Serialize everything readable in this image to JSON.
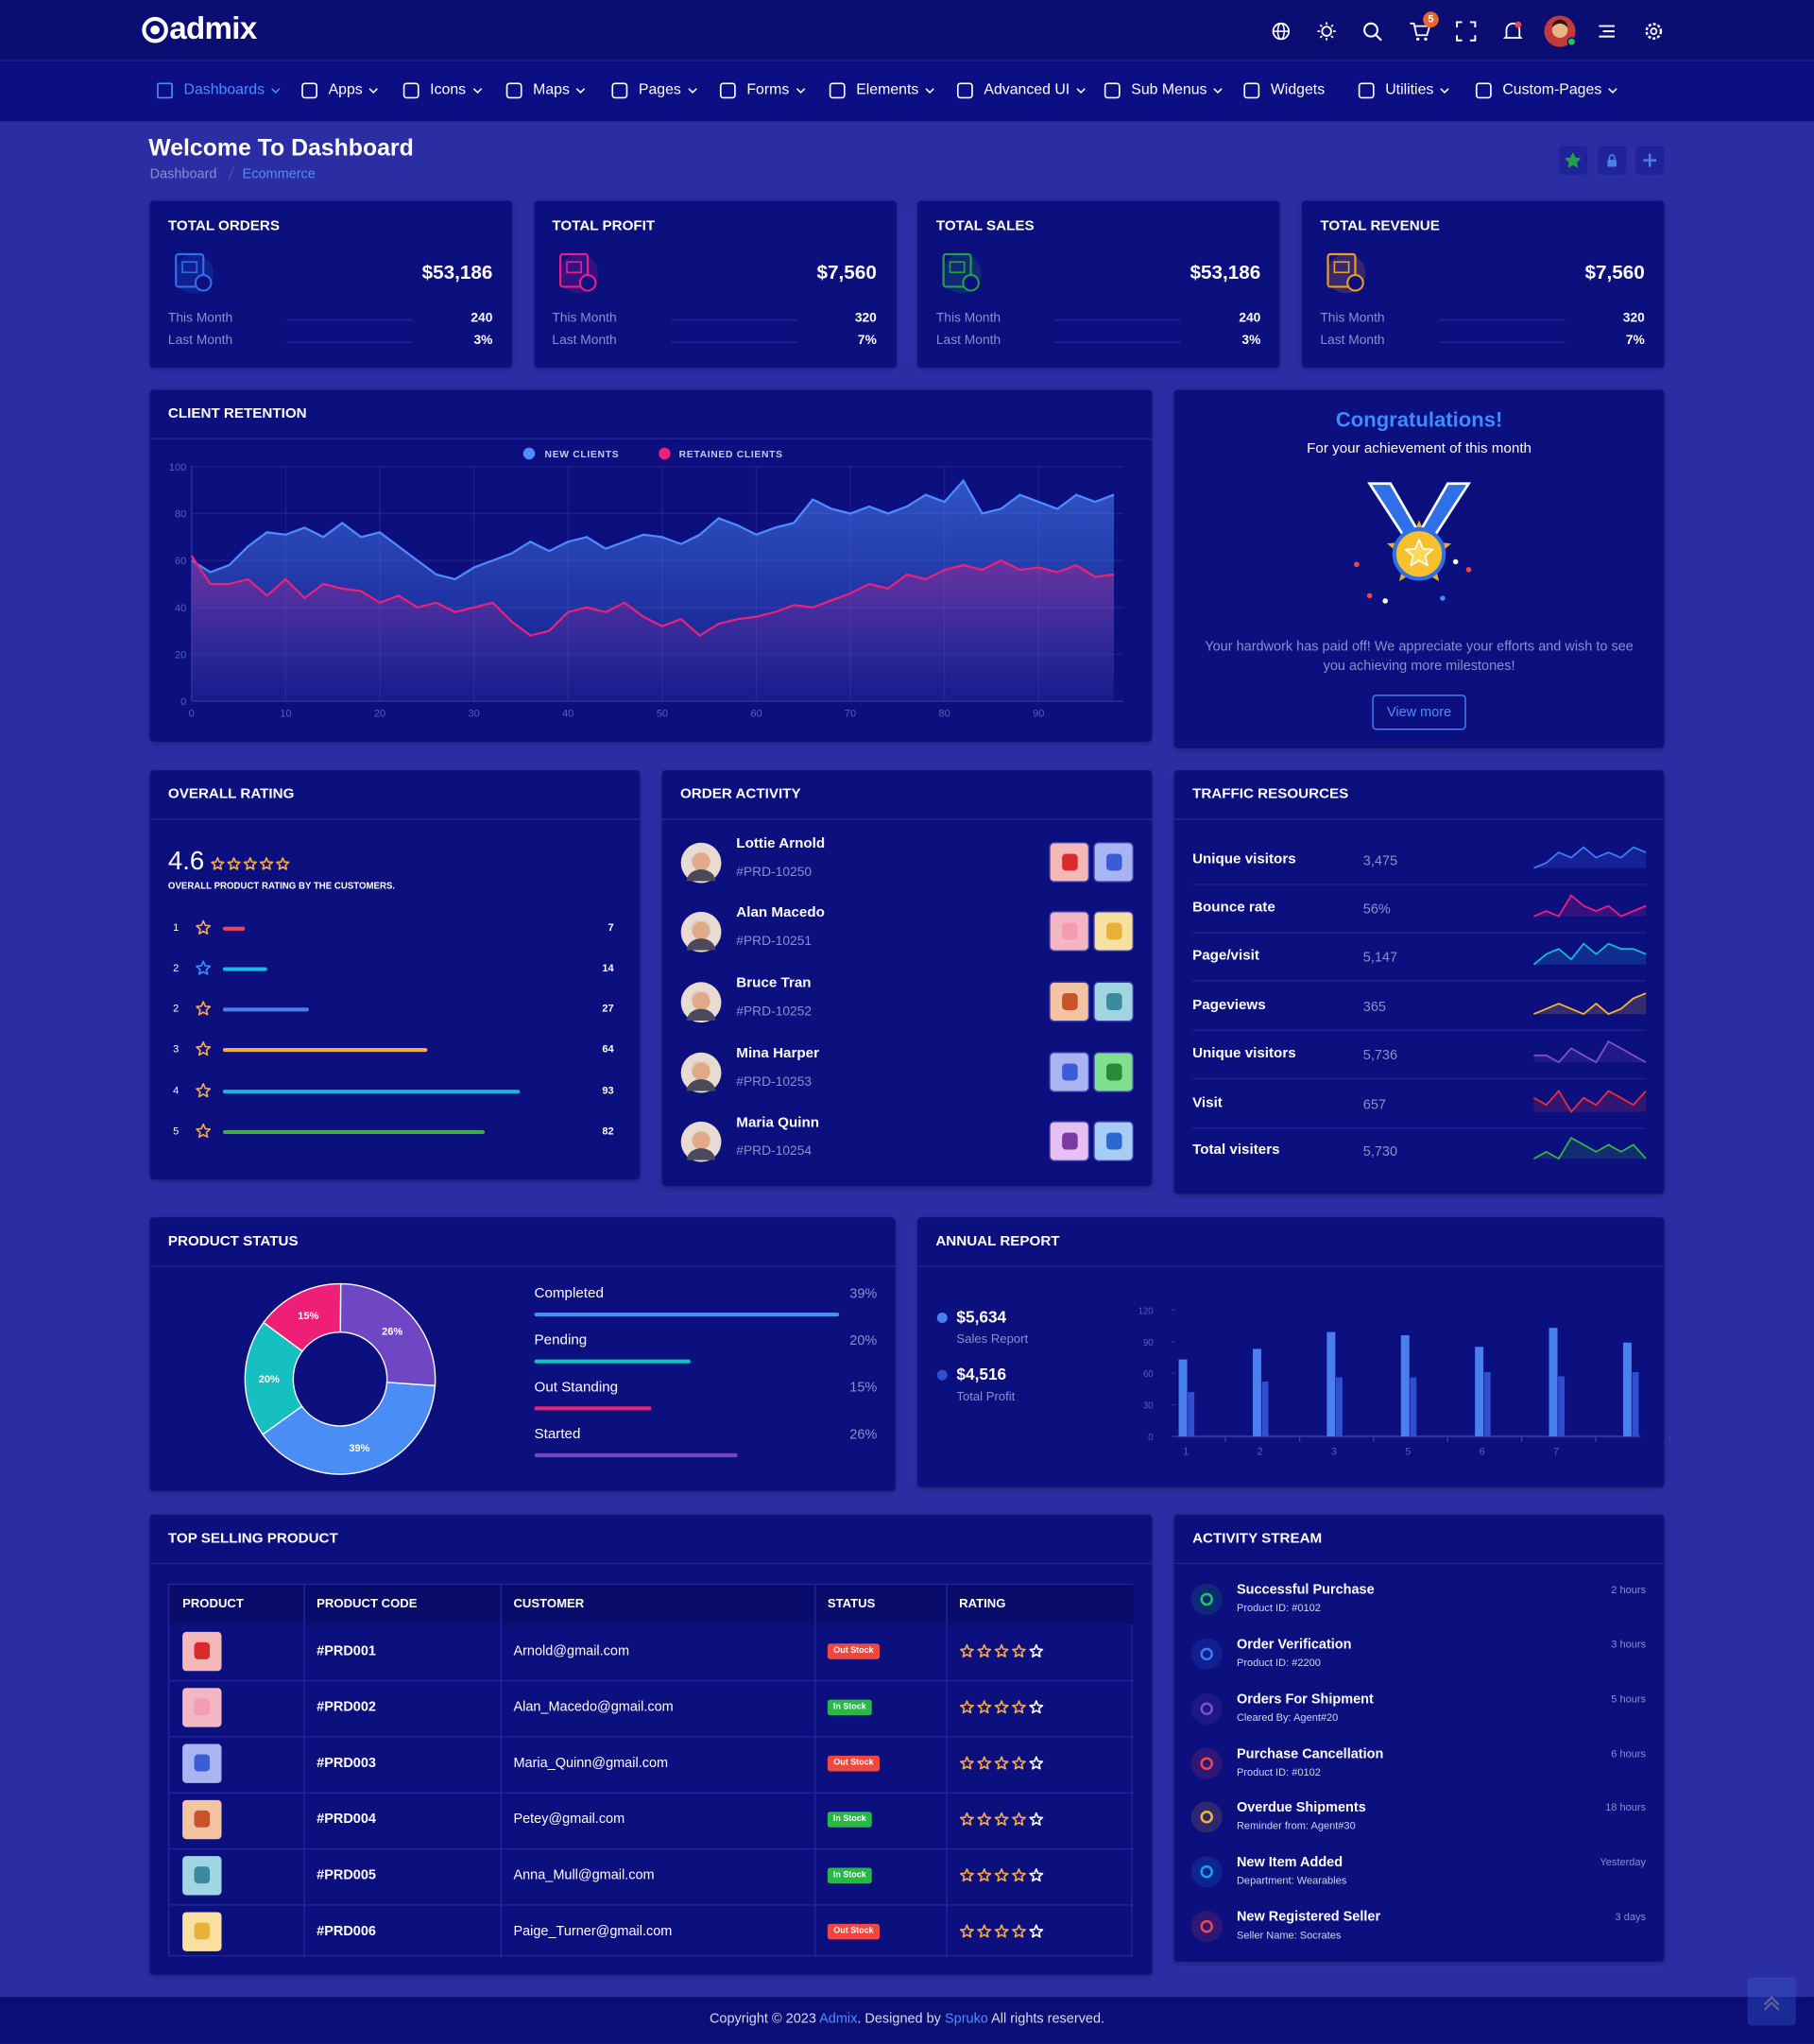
{
  "header": {
    "brand": "admix",
    "cart_badge": "5"
  },
  "nav": [
    "Dashboards",
    "Apps",
    "Icons",
    "Maps",
    "Pages",
    "Forms",
    "Elements",
    "Advanced UI",
    "Sub Menus",
    "Widgets",
    "Utilities",
    "Custom-Pages"
  ],
  "page_header": {
    "title": "Welcome To Dashboard",
    "breadcrumb": [
      "Dashboard",
      "Ecommerce"
    ]
  },
  "stat_cards": [
    {
      "title": "TOTAL ORDERS",
      "value": "$53,186",
      "color": "#2f6fe8",
      "this_month_label": "This Month",
      "this_month": "240",
      "last_month_label": "Last Month",
      "last_month": "3%"
    },
    {
      "title": "TOTAL PROFIT",
      "value": "$7,560",
      "color": "#e91e8c",
      "this_month_label": "This Month",
      "this_month": "320",
      "last_month_label": "Last Month",
      "last_month": "7%"
    },
    {
      "title": "TOTAL SALES",
      "value": "$53,186",
      "color": "#22a046",
      "this_month_label": "This Month",
      "this_month": "240",
      "last_month_label": "Last Month",
      "last_month": "3%"
    },
    {
      "title": "TOTAL REVENUE",
      "value": "$7,560",
      "color": "#f09a26",
      "this_month_label": "This Month",
      "this_month": "320",
      "last_month_label": "Last Month",
      "last_month": "7%"
    }
  ],
  "congrats": {
    "title": "Congratulations!",
    "subtitle": "For your achievement of this month",
    "text": "Your hardwork has paid off! We appreciate your efforts and wish to see you achieving more milestones!",
    "button": "View more"
  },
  "rating": {
    "title": "OVERALL RATING",
    "score": "4.6",
    "caption": "OVERALL PRODUCT RATING BY THE CUSTOMERS.",
    "rows": [
      {
        "label": "1",
        "value": 7,
        "color": "#f04848"
      },
      {
        "label": "2",
        "value": 14,
        "color": "#19b9e6"
      },
      {
        "label": "2",
        "value": 27,
        "color": "#4a7ff0"
      },
      {
        "label": "3",
        "value": 64,
        "color": "#f5a94a"
      },
      {
        "label": "4",
        "value": 93,
        "color": "#14b8d4"
      },
      {
        "label": "5",
        "value": 82,
        "color": "#3cb043"
      }
    ]
  },
  "orders": {
    "title": "ORDER ACTIVITY",
    "items": [
      {
        "name": "Lottie Arnold",
        "id": "#PRD-10250"
      },
      {
        "name": "Alan Macedo",
        "id": "#PRD-10251"
      },
      {
        "name": "Bruce Tran",
        "id": "#PRD-10252"
      },
      {
        "name": "Mina Harper",
        "id": "#PRD-10253"
      },
      {
        "name": "Maria Quinn",
        "id": "#PRD-10254"
      }
    ]
  },
  "traffic": {
    "title": "TRAFFIC RESOURCES",
    "rows": [
      {
        "label": "Unique visitors",
        "value": "3,475",
        "color": "#3b7cf5",
        "spark": [
          3,
          4,
          6,
          5,
          7,
          5,
          6,
          5,
          7,
          6
        ]
      },
      {
        "label": "Bounce rate",
        "value": "56%",
        "color": "#e9217f",
        "spark": [
          4,
          5,
          4,
          8,
          6,
          5,
          6,
          4,
          5,
          6
        ]
      },
      {
        "label": "Page/visit",
        "value": "5,147",
        "color": "#19b9d6",
        "spark": [
          3,
          5,
          6,
          4,
          7,
          5,
          7,
          6,
          6,
          5
        ]
      },
      {
        "label": "Pageviews",
        "value": "365",
        "color": "#f5b631",
        "spark": [
          4,
          5,
          6,
          5,
          4,
          6,
          4,
          5,
          7,
          8
        ]
      },
      {
        "label": "Unique visitors",
        "value": "5,736",
        "color": "#7e4fd0",
        "spark": [
          5,
          5,
          4,
          6,
          5,
          4,
          7,
          6,
          5,
          4
        ]
      },
      {
        "label": "Visit",
        "value": "657",
        "color": "#e8303c",
        "spark": [
          5,
          4,
          6,
          3,
          5,
          4,
          6,
          5,
          4,
          6
        ]
      },
      {
        "label": "Total visiters",
        "value": "5,730",
        "color": "#3cb043",
        "spark": [
          4,
          5,
          4,
          7,
          6,
          5,
          6,
          5,
          6,
          4
        ]
      }
    ]
  },
  "top_selling": {
    "title": "TOP SELLING PRODUCT",
    "columns": [
      "PRODUCT",
      "PRODUCT CODE",
      "CUSTOMER",
      "STATUS",
      "RATING"
    ],
    "rows": [
      [
        "#PRD001",
        "Arnold@gmail.com",
        "Out Stock"
      ],
      [
        "#PRD002",
        "Alan_Macedo@gmail.com",
        "In Stock"
      ],
      [
        "#PRD003",
        "Maria_Quinn@gmail.com",
        "Out Stock"
      ],
      [
        "#PRD004",
        "Petey@gmail.com",
        "In Stock"
      ],
      [
        "#PRD005",
        "Anna_Mull@gmail.com",
        "In Stock"
      ],
      [
        "#PRD006",
        "Paige_Turner@gmail.com",
        "Out Stock"
      ]
    ]
  },
  "activity": {
    "title": "ACTIVITY STREAM",
    "items": [
      {
        "title": "Successful Purchase",
        "sub": "Product ID: #0102",
        "time": "2 hours"
      },
      {
        "title": "Order Verification",
        "sub": "Product ID: #2200",
        "time": "3 hours"
      },
      {
        "title": "Orders For Shipment",
        "sub": "Cleared By: Agent#20",
        "time": "5 hours"
      },
      {
        "title": "Purchase Cancellation",
        "sub": "Product ID: #0102",
        "time": "6 hours"
      },
      {
        "title": "Overdue Shipments",
        "sub": "Reminder from: Agent#30",
        "time": "18 hours"
      },
      {
        "title": "New Item Added",
        "sub": "Department: Wearables",
        "time": "Yesterday"
      },
      {
        "title": "New Registered Seller",
        "sub": "Seller Name: Socrates",
        "time": "3 days"
      }
    ]
  },
  "footer": {
    "copyright": "Copyright © 2023",
    "brand": "Admix",
    "designed": ". Designed by",
    "designer": "Spruko",
    "rights": "All rights reserved."
  },
  "chart_data": [
    {
      "type": "area",
      "title": "CLIENT RETENTION",
      "grid": true,
      "x": [
        0,
        2,
        4,
        6,
        8,
        10,
        12,
        14,
        16,
        18,
        20,
        22,
        24,
        26,
        28,
        30,
        32,
        34,
        36,
        38,
        40,
        42,
        44,
        46,
        48,
        50,
        52,
        54,
        56,
        58,
        60,
        62,
        64,
        66,
        68,
        70,
        72,
        74,
        76,
        78,
        80,
        82,
        84,
        86,
        88,
        90,
        92,
        94,
        96,
        98
      ],
      "xlim": [
        0,
        99
      ],
      "ylim": [
        0,
        100
      ],
      "xticks": [
        0,
        10,
        20,
        30,
        40,
        50,
        60,
        70,
        80,
        90
      ],
      "yticks": [
        0,
        20,
        40,
        60,
        80,
        100
      ],
      "series": [
        {
          "name": "NEW CLIENTS",
          "color": "#4f8cff",
          "values": [
            60,
            55,
            58,
            66,
            72,
            71,
            74,
            70,
            76,
            70,
            72,
            66,
            60,
            54,
            52,
            57,
            60,
            63,
            68,
            64,
            68,
            70,
            65,
            68,
            71,
            70,
            67,
            71,
            78,
            75,
            71,
            74,
            76,
            86,
            82,
            80,
            83,
            80,
            83,
            88,
            85,
            94,
            80,
            82,
            88,
            85,
            82,
            88,
            85,
            88
          ]
        },
        {
          "name": "RETAINED CLIENTS",
          "color": "#f0207a",
          "values": [
            62,
            50,
            50,
            52,
            45,
            52,
            44,
            50,
            48,
            47,
            42,
            45,
            40,
            42,
            38,
            40,
            42,
            34,
            28,
            30,
            38,
            40,
            38,
            42,
            36,
            32,
            35,
            28,
            33,
            35,
            36,
            38,
            41,
            40,
            43,
            46,
            50,
            48,
            54,
            52,
            56,
            58,
            56,
            60,
            56,
            57,
            55,
            58,
            53,
            54
          ]
        }
      ]
    },
    {
      "type": "donut",
      "title": "PRODUCT STATUS",
      "categories": [
        "Completed",
        "Pending",
        "Out Standing",
        "Started"
      ],
      "values": [
        39,
        20,
        15,
        26
      ],
      "value_labels": [
        "39%",
        "20%",
        "15%",
        "26%"
      ],
      "colors": [
        "#4a8df6",
        "#16bfc0",
        "#ef1f77",
        "#6f47c5"
      ]
    },
    {
      "type": "bar",
      "title": "ANNUAL REPORT",
      "categories": [
        "1",
        "2",
        "3",
        "5",
        "6",
        "7",
        null
      ],
      "ylim": [
        0,
        120
      ],
      "yticks": [
        0,
        30,
        60,
        90,
        120
      ],
      "series": [
        {
          "name": "Sales Report",
          "value": "$5,634",
          "color": "#4a7ff0",
          "values": [
            73,
            83,
            99,
            96,
            85,
            103,
            89
          ]
        },
        {
          "name": "Total Profit",
          "value": "$4,516",
          "color": "#2e4fd0",
          "values": [
            42,
            52,
            56,
            56,
            61,
            57,
            61
          ]
        }
      ]
    }
  ]
}
